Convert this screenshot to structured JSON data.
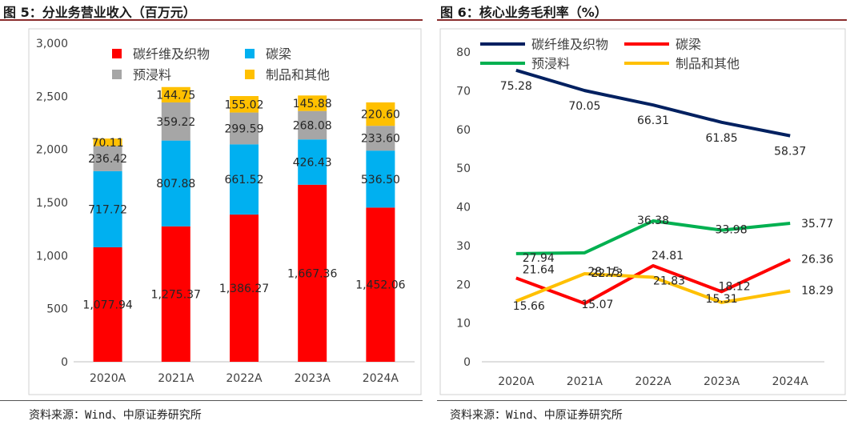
{
  "left": {
    "title": "图 5：分业务营业收入（百万元）",
    "source": "资料来源：Wind、中原证券研究所"
  },
  "right": {
    "title": "图 6：核心业务毛利率（%）",
    "source": "资料来源：Wind、中原证券研究所"
  },
  "chart_data": [
    {
      "type": "bar",
      "stacked": true,
      "title": "分业务营业收入（百万元）",
      "categories": [
        "2020A",
        "2021A",
        "2022A",
        "2023A",
        "2024A"
      ],
      "ylim": [
        0,
        3000
      ],
      "yticks": [
        0,
        500,
        1000,
        1500,
        2000,
        2500,
        3000
      ],
      "ytick_labels": [
        "0",
        "500",
        "1,000",
        "1,500",
        "2,000",
        "2,500",
        "3,000"
      ],
      "grid": false,
      "legend": "top",
      "series": [
        {
          "name": "碳纤维及织物",
          "color": "#ff0000",
          "values": [
            1077.94,
            1275.37,
            1386.27,
            1667.36,
            1452.06
          ],
          "labels": [
            "1,077.94",
            "1,275.37",
            "1,386.27",
            "1,667.36",
            "1,452.06"
          ]
        },
        {
          "name": "碳梁",
          "color": "#00b0f0",
          "values": [
            717.72,
            807.88,
            661.52,
            426.43,
            536.5
          ],
          "labels": [
            "717.72",
            "807.88",
            "661.52",
            "426.43",
            "536.50"
          ]
        },
        {
          "name": "预浸料",
          "color": "#a6a6a6",
          "values": [
            236.42,
            359.22,
            299.59,
            268.08,
            233.6
          ],
          "labels": [
            "236.42",
            "359.22",
            "299.59",
            "268.08",
            "233.60"
          ]
        },
        {
          "name": "制品和其他",
          "color": "#ffc000",
          "values": [
            70.11,
            144.75,
            155.02,
            145.88,
            220.6
          ],
          "labels": [
            "70.11",
            "144.75",
            "155.02",
            "145.88",
            "220.60"
          ]
        }
      ]
    },
    {
      "type": "line",
      "title": "核心业务毛利率（%）",
      "categories": [
        "2020A",
        "2021A",
        "2022A",
        "2023A",
        "2024A"
      ],
      "ylim": [
        0,
        80
      ],
      "yticks": [
        0,
        10,
        20,
        30,
        40,
        50,
        60,
        70,
        80
      ],
      "grid": false,
      "legend": "top",
      "series": [
        {
          "name": "碳纤维及织物",
          "color": "#002060",
          "values": [
            75.28,
            70.05,
            66.31,
            61.85,
            58.37
          ],
          "labels": [
            "75.28",
            "70.05",
            "66.31",
            "61.85",
            "58.37"
          ]
        },
        {
          "name": "碳梁",
          "color": "#ff0000",
          "values": [
            21.64,
            15.07,
            24.81,
            18.12,
            26.36
          ],
          "labels": [
            "21.64",
            "15.07",
            "24.81",
            "18.12",
            "26.36"
          ]
        },
        {
          "name": "预浸料",
          "color": "#00b050",
          "values": [
            27.94,
            28.15,
            36.38,
            33.98,
            35.77
          ],
          "labels": [
            "27.94",
            "28.15",
            "36.38",
            "33.98",
            "35.77"
          ]
        },
        {
          "name": "制品和其他",
          "color": "#ffc000",
          "values": [
            15.66,
            22.73,
            21.83,
            15.31,
            18.29
          ],
          "labels": [
            "15.66",
            "22.73",
            "21.83",
            "15.31",
            "18.29"
          ]
        }
      ]
    }
  ]
}
